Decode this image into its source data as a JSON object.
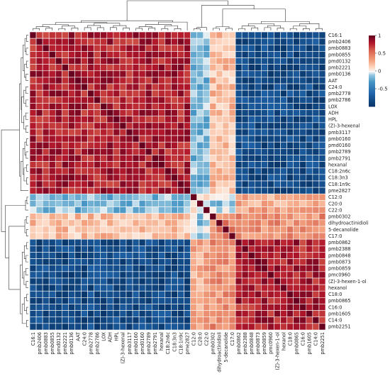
{
  "chart_data": {
    "type": "heatmap",
    "title": "",
    "xlabel": "",
    "ylabel": "",
    "labels": [
      "C16:1",
      "pmb2406",
      "pmb0883",
      "pmb0855",
      "pmd0132",
      "pmb2221",
      "pmb0136",
      "AAT",
      "C24:0",
      "pmb2778",
      "pmb2786",
      "LOX",
      "ADH",
      "HPL",
      "(Z)-3-hexenal",
      "pmb3117",
      "pmb0160",
      "pmd0160",
      "pmb2789",
      "pmb2791",
      "hexanal",
      "C18:2n6c",
      "C18:3n3",
      "C18:1n9c",
      "pme2827",
      "C12:0",
      "C20:0",
      "C22:0",
      "pmb0302",
      "dihydroactinidioli",
      "5-decanolide",
      "C17:0",
      "pmb0862",
      "pmb2388",
      "pmb0848",
      "pmb0873",
      "pmb0859",
      "pmc0960",
      "(Z)-3-hexen-1-ol",
      "hexanol",
      "C18:0",
      "pmb0865",
      "C16:0",
      "pmb1605",
      "C14:0",
      "pmb2251"
    ],
    "group_sizes": [
      25,
      3,
      4,
      14
    ],
    "within_group_corr": [
      0.8,
      0.1,
      0.45,
      0.8
    ],
    "between_group_corr": {
      "0-1": -0.15,
      "0-2": 0.2,
      "0-3": -0.8,
      "1-2": -0.1,
      "1-3": 0.3,
      "2-3": 0.4
    },
    "scale": {
      "min": -1,
      "max": 1,
      "ticks": [
        "1",
        "0.5",
        "0",
        "-0.5"
      ],
      "low_color": "#053061",
      "mid_color": "#f7f7f7",
      "high_color": "#67001f"
    },
    "dendrogram": "both",
    "grid": true
  }
}
